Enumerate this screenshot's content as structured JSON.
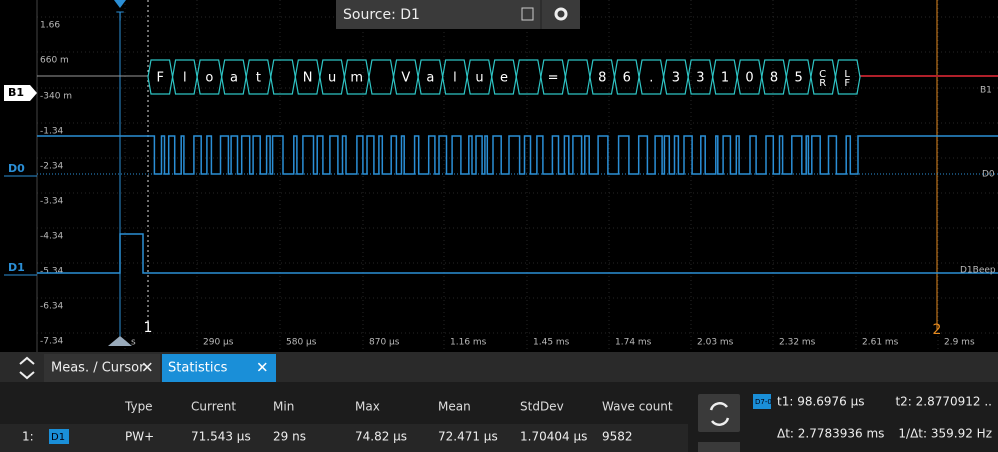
{
  "y_axis_labels": [
    "1.66",
    "660 m",
    "-340 m",
    "-1.34",
    "-2.34",
    "-3.34",
    "-4.34",
    "-5.34",
    "-6.34",
    "-7.34"
  ],
  "x_axis_labels": [
    "s",
    "290 µs",
    "580 µs",
    "870 µs",
    "1.16 ms",
    "1.45 ms",
    "1.74 ms",
    "2.03 ms",
    "2.32 ms",
    "2.61 ms",
    "2.9 ms"
  ],
  "channels_left": [
    "B1",
    "D0",
    "D1"
  ],
  "channels_right": [
    "B1",
    "D0",
    "D1Beep"
  ],
  "trigger_marker": "T",
  "cursor_markers": [
    "1",
    "2"
  ],
  "decode_words": [
    [
      "F",
      "l",
      "o",
      "a",
      "t"
    ],
    [
      "N",
      "u",
      "m"
    ],
    [
      "V",
      "a",
      "l",
      "u",
      "e"
    ],
    [
      "="
    ],
    [
      "8",
      "6",
      ".",
      "3",
      "3",
      "1",
      "0",
      "8",
      "5",
      "CR",
      "LF"
    ]
  ],
  "source_panel": {
    "label": "Source: D1"
  },
  "tabs": [
    "Meas. / Cursor",
    "Statistics"
  ],
  "stats_table": {
    "headers": [
      "Type",
      "Current",
      "Min",
      "Max",
      "Mean",
      "StdDev",
      "Wave count"
    ],
    "rows": [
      [
        "1:",
        "D1",
        "PW+",
        "71.543 µs",
        "29 ns",
        "74.82 µs",
        "72.471 µs",
        "1.70404 µs",
        "9582"
      ]
    ]
  },
  "cursor_panel": {
    "source": "D7-0",
    "t1": "t1: 98.6976 µs",
    "t2": "t2: 2.8770912 ..",
    "dt": "Δt: 2.7783936 ms",
    "inv_dt": "1/Δt: 359.92 Hz"
  }
}
